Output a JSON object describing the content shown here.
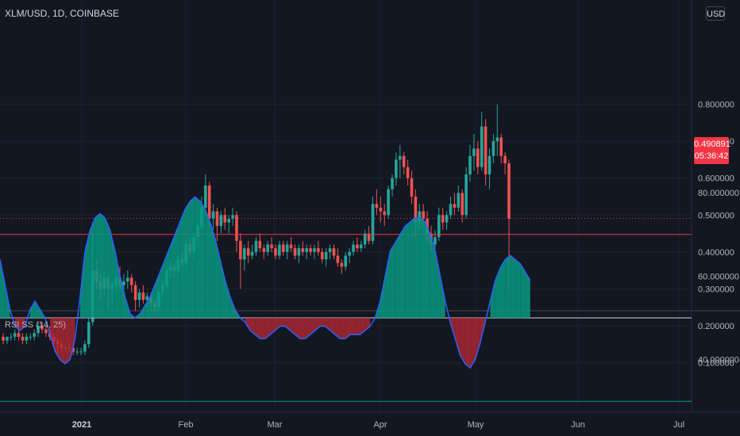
{
  "header": {
    "symbol": "XLM/USD, 1D, COINBASE",
    "currency": "USD"
  },
  "last_price": {
    "value": "0.490891",
    "countdown": "05:36:42"
  },
  "colors": {
    "background": "#131722",
    "up": "#26a69a",
    "down": "#ef5350",
    "grid": "#1e222d",
    "rsi_line": "#2962ff",
    "upper_band": "#f23645",
    "lower_band": "#089981"
  },
  "chart_data": [
    {
      "type": "candlestick",
      "title": "XLM/USD, 1D, COINBASE",
      "x_tick_labels": [
        "2021",
        "Feb",
        "Mar",
        "Apr",
        "May",
        "Jun",
        "Jul"
      ],
      "y_tick_labels": [
        "0.800000",
        "0.700000",
        "0.600000",
        "0.500000",
        "0.400000",
        "0.300000",
        "0.200000",
        "0.100000"
      ],
      "ylim": [
        0.05,
        0.82
      ],
      "grid": true,
      "series": [
        {
          "values": [
            [
              0.17,
              0.18,
              0.15,
              0.16
            ],
            [
              0.16,
              0.17,
              0.15,
              0.17
            ],
            [
              0.17,
              0.18,
              0.16,
              0.17
            ],
            [
              0.17,
              0.19,
              0.16,
              0.18
            ],
            [
              0.18,
              0.19,
              0.16,
              0.17
            ],
            [
              0.17,
              0.18,
              0.15,
              0.16
            ],
            [
              0.16,
              0.18,
              0.15,
              0.17
            ],
            [
              0.17,
              0.18,
              0.16,
              0.17
            ],
            [
              0.17,
              0.19,
              0.16,
              0.18
            ],
            [
              0.18,
              0.21,
              0.17,
              0.2
            ],
            [
              0.2,
              0.21,
              0.18,
              0.19
            ],
            [
              0.19,
              0.2,
              0.17,
              0.18
            ],
            [
              0.18,
              0.19,
              0.16,
              0.17
            ],
            [
              0.17,
              0.18,
              0.15,
              0.16
            ],
            [
              0.16,
              0.17,
              0.12,
              0.15
            ],
            [
              0.15,
              0.16,
              0.13,
              0.14
            ],
            [
              0.14,
              0.15,
              0.13,
              0.14
            ],
            [
              0.14,
              0.15,
              0.13,
              0.14
            ],
            [
              0.14,
              0.15,
              0.12,
              0.13
            ],
            [
              0.13,
              0.14,
              0.12,
              0.13
            ],
            [
              0.13,
              0.14,
              0.12,
              0.13
            ],
            [
              0.13,
              0.16,
              0.12,
              0.15
            ],
            [
              0.15,
              0.22,
              0.14,
              0.21
            ],
            [
              0.21,
              0.45,
              0.2,
              0.35
            ],
            [
              0.35,
              0.38,
              0.3,
              0.32
            ],
            [
              0.32,
              0.34,
              0.27,
              0.3
            ],
            [
              0.3,
              0.35,
              0.28,
              0.33
            ],
            [
              0.33,
              0.34,
              0.25,
              0.3
            ],
            [
              0.3,
              0.32,
              0.26,
              0.31
            ],
            [
              0.31,
              0.34,
              0.29,
              0.33
            ],
            [
              0.33,
              0.36,
              0.3,
              0.31
            ],
            [
              0.31,
              0.34,
              0.28,
              0.32
            ],
            [
              0.32,
              0.35,
              0.3,
              0.33
            ],
            [
              0.33,
              0.34,
              0.29,
              0.31
            ],
            [
              0.31,
              0.32,
              0.24,
              0.27
            ],
            [
              0.27,
              0.3,
              0.25,
              0.29
            ],
            [
              0.29,
              0.31,
              0.26,
              0.27
            ],
            [
              0.27,
              0.29,
              0.25,
              0.28
            ],
            [
              0.28,
              0.29,
              0.24,
              0.26
            ],
            [
              0.26,
              0.27,
              0.23,
              0.25
            ],
            [
              0.25,
              0.3,
              0.24,
              0.29
            ],
            [
              0.29,
              0.32,
              0.28,
              0.31
            ],
            [
              0.31,
              0.36,
              0.3,
              0.35
            ],
            [
              0.35,
              0.38,
              0.33,
              0.36
            ],
            [
              0.36,
              0.37,
              0.33,
              0.35
            ],
            [
              0.35,
              0.39,
              0.34,
              0.38
            ],
            [
              0.38,
              0.4,
              0.36,
              0.37
            ],
            [
              0.37,
              0.43,
              0.36,
              0.42
            ],
            [
              0.42,
              0.44,
              0.39,
              0.4
            ],
            [
              0.4,
              0.45,
              0.38,
              0.44
            ],
            [
              0.44,
              0.48,
              0.42,
              0.47
            ],
            [
              0.47,
              0.55,
              0.46,
              0.52
            ],
            [
              0.52,
              0.61,
              0.5,
              0.58
            ],
            [
              0.58,
              0.59,
              0.47,
              0.49
            ],
            [
              0.49,
              0.53,
              0.46,
              0.51
            ],
            [
              0.51,
              0.52,
              0.43,
              0.47
            ],
            [
              0.47,
              0.51,
              0.45,
              0.5
            ],
            [
              0.5,
              0.52,
              0.46,
              0.48
            ],
            [
              0.48,
              0.5,
              0.45,
              0.49
            ],
            [
              0.49,
              0.52,
              0.47,
              0.5
            ],
            [
              0.5,
              0.51,
              0.4,
              0.43
            ],
            [
              0.43,
              0.45,
              0.3,
              0.38
            ],
            [
              0.38,
              0.42,
              0.35,
              0.41
            ],
            [
              0.41,
              0.43,
              0.37,
              0.39
            ],
            [
              0.39,
              0.42,
              0.38,
              0.4
            ],
            [
              0.4,
              0.44,
              0.39,
              0.43
            ],
            [
              0.43,
              0.45,
              0.4,
              0.41
            ],
            [
              0.41,
              0.42,
              0.38,
              0.4
            ],
            [
              0.4,
              0.43,
              0.39,
              0.42
            ],
            [
              0.42,
              0.44,
              0.4,
              0.41
            ],
            [
              0.41,
              0.42,
              0.38,
              0.39
            ],
            [
              0.39,
              0.43,
              0.38,
              0.42
            ],
            [
              0.42,
              0.43,
              0.39,
              0.4
            ],
            [
              0.4,
              0.43,
              0.38,
              0.42
            ],
            [
              0.42,
              0.44,
              0.4,
              0.41
            ],
            [
              0.41,
              0.42,
              0.38,
              0.39
            ],
            [
              0.39,
              0.42,
              0.37,
              0.41
            ],
            [
              0.41,
              0.43,
              0.39,
              0.4
            ],
            [
              0.4,
              0.42,
              0.38,
              0.41
            ],
            [
              0.41,
              0.42,
              0.39,
              0.4
            ],
            [
              0.4,
              0.42,
              0.38,
              0.41
            ],
            [
              0.41,
              0.43,
              0.39,
              0.4
            ],
            [
              0.4,
              0.41,
              0.37,
              0.38
            ],
            [
              0.38,
              0.41,
              0.36,
              0.4
            ],
            [
              0.4,
              0.42,
              0.38,
              0.41
            ],
            [
              0.41,
              0.42,
              0.38,
              0.39
            ],
            [
              0.39,
              0.41,
              0.36,
              0.37
            ],
            [
              0.37,
              0.38,
              0.34,
              0.36
            ],
            [
              0.36,
              0.4,
              0.35,
              0.39
            ],
            [
              0.39,
              0.41,
              0.37,
              0.4
            ],
            [
              0.4,
              0.43,
              0.39,
              0.42
            ],
            [
              0.42,
              0.44,
              0.4,
              0.41
            ],
            [
              0.41,
              0.43,
              0.4,
              0.42
            ],
            [
              0.42,
              0.46,
              0.41,
              0.45
            ],
            [
              0.45,
              0.47,
              0.42,
              0.43
            ],
            [
              0.43,
              0.55,
              0.42,
              0.53
            ],
            [
              0.53,
              0.57,
              0.5,
              0.52
            ],
            [
              0.52,
              0.55,
              0.48,
              0.51
            ],
            [
              0.51,
              0.53,
              0.47,
              0.5
            ],
            [
              0.5,
              0.58,
              0.49,
              0.57
            ],
            [
              0.57,
              0.61,
              0.55,
              0.6
            ],
            [
              0.6,
              0.67,
              0.58,
              0.65
            ],
            [
              0.65,
              0.69,
              0.6,
              0.66
            ],
            [
              0.66,
              0.67,
              0.61,
              0.63
            ],
            [
              0.63,
              0.65,
              0.58,
              0.6
            ],
            [
              0.6,
              0.62,
              0.53,
              0.55
            ],
            [
              0.55,
              0.57,
              0.44,
              0.48
            ],
            [
              0.48,
              0.53,
              0.46,
              0.51
            ],
            [
              0.51,
              0.53,
              0.47,
              0.49
            ],
            [
              0.49,
              0.51,
              0.43,
              0.45
            ],
            [
              0.45,
              0.47,
              0.4,
              0.42
            ],
            [
              0.42,
              0.46,
              0.4,
              0.44
            ],
            [
              0.44,
              0.52,
              0.43,
              0.5
            ],
            [
              0.5,
              0.52,
              0.46,
              0.48
            ],
            [
              0.48,
              0.51,
              0.46,
              0.5
            ],
            [
              0.5,
              0.55,
              0.49,
              0.53
            ],
            [
              0.53,
              0.56,
              0.5,
              0.52
            ],
            [
              0.52,
              0.58,
              0.51,
              0.56
            ],
            [
              0.56,
              0.57,
              0.48,
              0.5
            ],
            [
              0.5,
              0.63,
              0.49,
              0.61
            ],
            [
              0.61,
              0.69,
              0.59,
              0.66
            ],
            [
              0.66,
              0.72,
              0.62,
              0.68
            ],
            [
              0.68,
              0.7,
              0.61,
              0.63
            ],
            [
              0.63,
              0.78,
              0.62,
              0.74
            ],
            [
              0.74,
              0.76,
              0.58,
              0.61
            ],
            [
              0.61,
              0.68,
              0.57,
              0.66
            ],
            [
              0.66,
              0.72,
              0.64,
              0.7
            ],
            [
              0.7,
              0.8,
              0.66,
              0.71
            ],
            [
              0.71,
              0.72,
              0.64,
              0.66
            ],
            [
              0.66,
              0.67,
              0.61,
              0.64
            ],
            [
              0.64,
              0.65,
              0.3,
              0.49
            ]
          ]
        }
      ]
    },
    {
      "type": "line",
      "title": "RSI SS (14, 25)",
      "y_tick_labels": [
        "80.000000",
        "60.000000",
        "40.000000"
      ],
      "ylim": [
        26,
        83
      ],
      "bands": {
        "upper": 70,
        "middle": 50,
        "lower": 30
      },
      "series": [
        {
          "values": [
            64,
            58,
            52,
            48,
            47,
            48,
            52,
            54,
            52,
            50,
            46,
            42,
            40,
            39,
            40,
            45,
            55,
            66,
            71,
            74,
            75,
            74,
            71,
            66,
            60,
            55,
            51,
            50,
            51,
            53,
            55,
            58,
            61,
            64,
            67,
            70,
            73,
            76,
            78,
            79,
            78,
            76,
            73,
            69,
            64,
            59,
            55,
            52,
            50,
            49,
            47,
            46,
            45,
            45,
            46,
            47,
            48,
            48,
            47,
            46,
            45,
            45,
            46,
            47,
            48,
            48,
            47,
            46,
            45,
            45,
            46,
            46,
            46,
            47,
            48,
            50,
            54,
            60,
            66,
            68,
            70,
            72,
            73,
            74,
            74,
            73,
            70,
            66,
            60,
            54,
            49,
            45,
            41,
            39,
            38,
            40,
            44,
            49,
            54,
            59,
            62,
            64,
            65,
            64,
            63,
            61,
            59
          ]
        }
      ]
    }
  ]
}
